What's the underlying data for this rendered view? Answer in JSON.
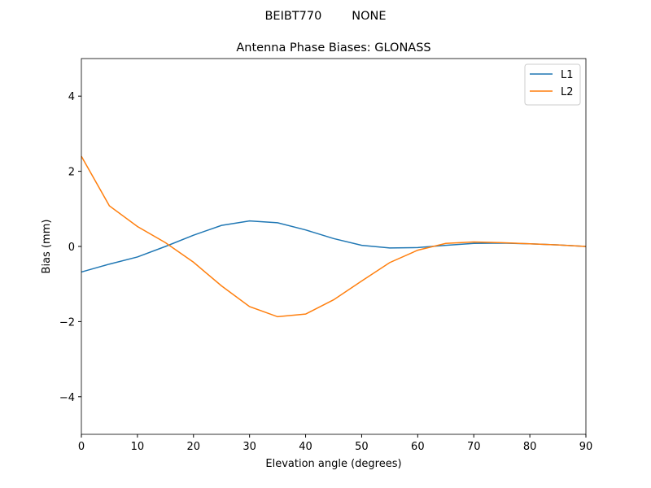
{
  "chart_data": {
    "type": "line",
    "suptitle": "BEIBT770        NONE",
    "title": "Antenna Phase Biases: GLONASS",
    "xlabel": "Elevation angle (degrees)",
    "ylabel": "Bias (mm)",
    "x": [
      0,
      5,
      10,
      15,
      20,
      25,
      30,
      35,
      40,
      45,
      50,
      55,
      60,
      65,
      70,
      75,
      80,
      85,
      90
    ],
    "series": [
      {
        "name": "L1",
        "color": "#1f77b4",
        "values": [
          -0.68,
          -0.47,
          -0.28,
          0.0,
          0.3,
          0.56,
          0.68,
          0.63,
          0.44,
          0.21,
          0.03,
          -0.04,
          -0.03,
          0.03,
          0.08,
          0.09,
          0.07,
          0.04,
          0.0
        ]
      },
      {
        "name": "L2",
        "color": "#ff7f0e",
        "values": [
          2.4,
          1.08,
          0.53,
          0.1,
          -0.42,
          -1.05,
          -1.6,
          -1.87,
          -1.8,
          -1.42,
          -0.92,
          -0.43,
          -0.1,
          0.08,
          0.12,
          0.1,
          0.07,
          0.04,
          0.0
        ]
      }
    ],
    "xlim": [
      0,
      90
    ],
    "xticks": [
      0,
      10,
      20,
      30,
      40,
      50,
      60,
      70,
      80,
      90
    ],
    "ylim": [
      -5,
      5
    ],
    "yticks": [
      {
        "value": -4,
        "label": "−4"
      },
      {
        "value": -2,
        "label": "−2"
      },
      0,
      2,
      4
    ],
    "legend": "upper right"
  }
}
